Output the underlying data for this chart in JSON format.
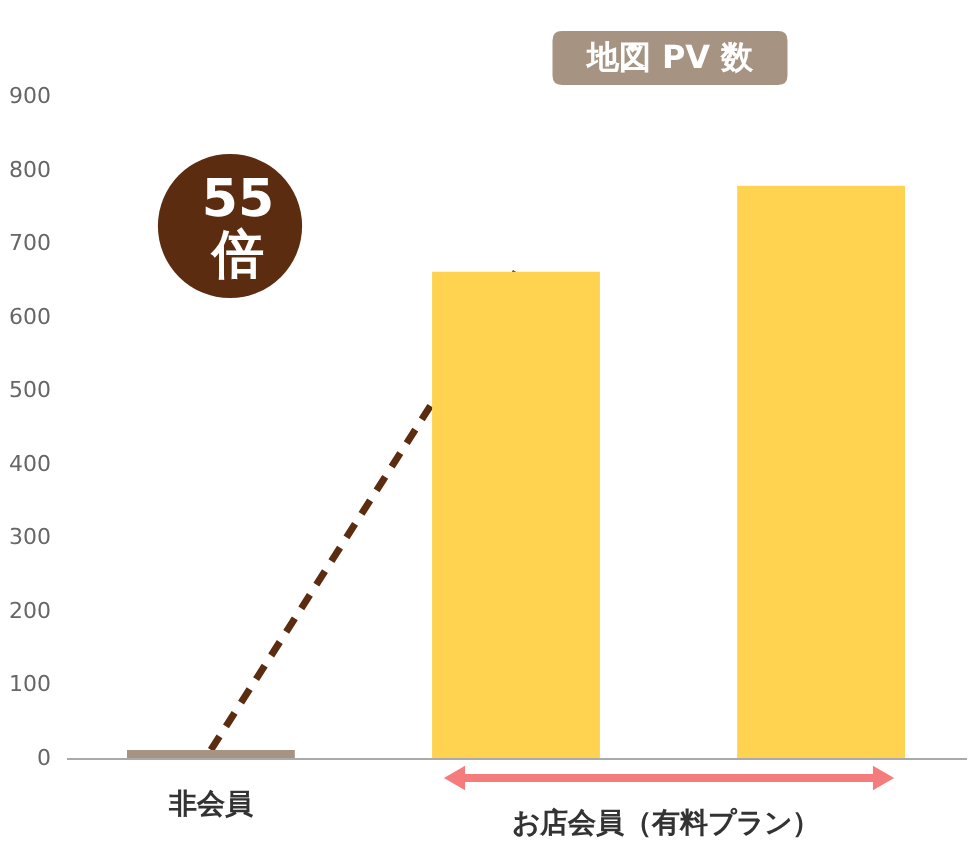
{
  "chart_data": {
    "type": "bar",
    "title": "地図 PV 数",
    "categories": [
      "非会員",
      null,
      null
    ],
    "series": [
      {
        "type": "line",
        "color": "#5b2c0f",
        "values": [
          11,
          661,
          null
        ],
        "line_style": "dashed",
        "marker": "none"
      },
      {
        "colors": [
          "#a69382",
          "#ffd24f",
          "#ffd24f"
        ],
        "values": [
          11,
          661,
          778
        ]
      }
    ],
    "ylim": [
      0,
      900
    ],
    "yticks": [
      0,
      100,
      200,
      300,
      400,
      500,
      600,
      700,
      800,
      900
    ],
    "grid": false,
    "annotations": [
      "55\n倍",
      "お店会員（有料プラン）"
    ]
  }
}
